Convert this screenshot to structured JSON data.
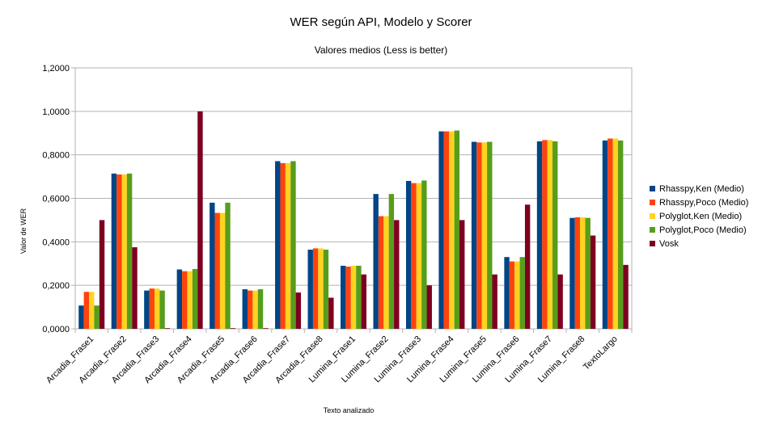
{
  "chart_data": {
    "type": "bar",
    "title": "WER según API, Modelo y Scorer",
    "subtitle": "Valores medios (Less is better)",
    "xlabel": "Texto analizado",
    "ylabel": "Valor de WER",
    "ylim": [
      0,
      1.2
    ],
    "yticks": [
      "0,0000",
      "0,2000",
      "0,4000",
      "0,6000",
      "0,8000",
      "1,0000",
      "1,2000"
    ],
    "grid": true,
    "legend_position": "right",
    "categories": [
      "Arcadia_Frase1",
      "Arcadia_Frase2",
      "Arcadia_Frase3",
      "Arcadia_Frase4",
      "Arcadia_Frase5",
      "Arcadia_Frase6",
      "Arcadia_Frase7",
      "Arcadia_Frase8",
      "Lumina_Frase1",
      "Lumina_Frase2",
      "Lumina_Frase3",
      "Lumina_Frase4",
      "Lumina_Frase5",
      "Lumina_Frase6",
      "Lumina_Frase7",
      "Lumina_Frase8",
      "TextoLargo"
    ],
    "series": [
      {
        "name": "Rhasspy,Ken (Medio)",
        "color": "#004586",
        "values": [
          0.107,
          0.714,
          0.176,
          0.273,
          0.58,
          0.182,
          0.771,
          0.364,
          0.29,
          0.62,
          0.68,
          0.908,
          0.86,
          0.33,
          0.862,
          0.51,
          0.866
        ]
      },
      {
        "name": "Rhasspy,Poco (Medio)",
        "color": "#ff420e",
        "values": [
          0.17,
          0.71,
          0.185,
          0.265,
          0.533,
          0.176,
          0.762,
          0.37,
          0.286,
          0.518,
          0.67,
          0.908,
          0.857,
          0.31,
          0.868,
          0.513,
          0.875
        ]
      },
      {
        "name": "Polyglot,Ken (Medio)",
        "color": "#ffd320",
        "values": [
          0.17,
          0.71,
          0.185,
          0.265,
          0.533,
          0.176,
          0.762,
          0.37,
          0.29,
          0.518,
          0.67,
          0.908,
          0.857,
          0.31,
          0.868,
          0.513,
          0.875
        ]
      },
      {
        "name": "Polyglot,Poco (Medio)",
        "color": "#579d1c",
        "values": [
          0.107,
          0.714,
          0.176,
          0.275,
          0.58,
          0.182,
          0.771,
          0.364,
          0.29,
          0.62,
          0.682,
          0.912,
          0.86,
          0.33,
          0.862,
          0.51,
          0.866
        ]
      },
      {
        "name": "Vosk",
        "color": "#7e0021",
        "values": [
          0.5,
          0.375,
          0.003,
          1.0,
          0.003,
          0.003,
          0.167,
          0.143,
          0.25,
          0.5,
          0.2,
          0.5,
          0.25,
          0.571,
          0.25,
          0.429,
          0.294
        ]
      }
    ]
  }
}
